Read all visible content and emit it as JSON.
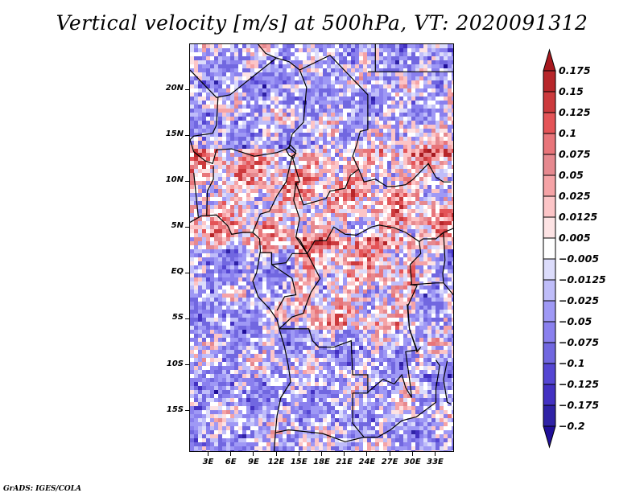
{
  "title": "Vertical velocity [m/s] at 500hPa, VT: 2020091312",
  "footer": "GrADS: IGES/COLA",
  "map": {
    "region": "Central & West Africa",
    "variable": "Vertical velocity",
    "units": "m/s",
    "level": "500hPa",
    "valid_time": "2020091312",
    "lat_range": [
      -19.5,
      25
    ],
    "lon_range": [
      0.5,
      35.5
    ],
    "lat_ticks": [
      "20N",
      "15N",
      "10N",
      "5N",
      "EQ",
      "5S",
      "10S",
      "15S"
    ],
    "lat_values": [
      20,
      15,
      10,
      5,
      0,
      -5,
      -10,
      -15
    ],
    "lon_ticks": [
      "3E",
      "6E",
      "9E",
      "12E",
      "15E",
      "18E",
      "21E",
      "24E",
      "27E",
      "30E",
      "33E"
    ],
    "lon_values": [
      3,
      6,
      9,
      12,
      15,
      18,
      21,
      24,
      27,
      30,
      33
    ]
  },
  "colorbar": {
    "labels": [
      "0.175",
      "0.15",
      "0.125",
      "0.1",
      "0.075",
      "0.05",
      "0.025",
      "0.0125",
      "0.005",
      "−0.005",
      "−0.0125",
      "−0.025",
      "−0.05",
      "−0.075",
      "−0.1",
      "−0.125",
      "−0.175",
      "−0.2"
    ],
    "levels": [
      0.175,
      0.15,
      0.125,
      0.1,
      0.075,
      0.05,
      0.025,
      0.0125,
      0.005,
      -0.005,
      -0.0125,
      -0.025,
      -0.05,
      -0.075,
      -0.1,
      -0.125,
      -0.175,
      -0.2
    ],
    "colors": [
      "#a8191f",
      "#b7262a",
      "#cc3a3d",
      "#e45457",
      "#e8757a",
      "#e6898f",
      "#f5a3a6",
      "#fcc5c7",
      "#fde3e4",
      "#ffffff",
      "#dcdcfb",
      "#bfbdf9",
      "#9f99f5",
      "#8a80ee",
      "#7167e0",
      "#5546d3",
      "#4331c2",
      "#2f22a6",
      "#200f99"
    ]
  }
}
